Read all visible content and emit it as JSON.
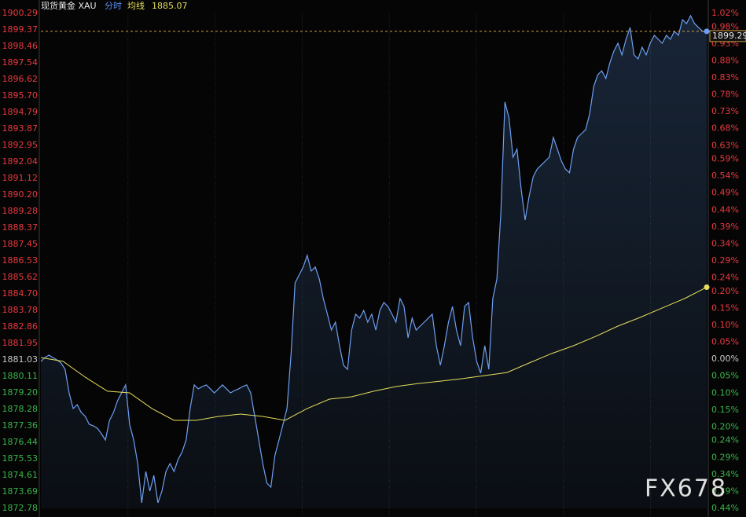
{
  "chart_data": {
    "type": "line",
    "title": "现货黄金 XAU",
    "series": [
      {
        "name": "分时",
        "color": "#6e9ff2",
        "values": [
          1880.95,
          1881.16,
          1881.3,
          1881.16,
          1881.03,
          1880.86,
          1880.51,
          1879.2,
          1878.33,
          1878.54,
          1878.11,
          1877.89,
          1877.45,
          1877.37,
          1877.23,
          1876.93,
          1876.58,
          1877.67,
          1878.11,
          1878.76,
          1879.2,
          1879.64,
          1877.45,
          1876.58,
          1875.27,
          1873.09,
          1874.83,
          1873.74,
          1874.61,
          1873.09,
          1873.74,
          1874.83,
          1875.27,
          1874.83,
          1875.49,
          1875.92,
          1876.58,
          1878.33,
          1879.64,
          1879.42,
          1879.55,
          1879.64,
          1879.42,
          1879.2,
          1879.42,
          1879.64,
          1879.42,
          1879.2,
          1879.33,
          1879.42,
          1879.55,
          1879.64,
          1879.2,
          1877.89,
          1876.58,
          1875.27,
          1874.18,
          1873.96,
          1875.71,
          1876.58,
          1877.45,
          1878.33,
          1881.38,
          1885.31,
          1885.75,
          1886.19,
          1886.84,
          1885.97,
          1886.19,
          1885.53,
          1884.44,
          1883.57,
          1882.69,
          1883.13,
          1881.82,
          1880.73,
          1880.51,
          1882.69,
          1883.57,
          1883.35,
          1883.78,
          1883.13,
          1883.57,
          1882.69,
          1883.78,
          1884.22,
          1884.0,
          1883.57,
          1883.13,
          1884.44,
          1884.0,
          1882.26,
          1883.35,
          1882.69,
          1882.91,
          1883.13,
          1883.35,
          1883.57,
          1881.82,
          1880.73,
          1881.82,
          1883.13,
          1884.0,
          1882.69,
          1881.82,
          1884.0,
          1884.22,
          1882.26,
          1880.95,
          1880.29,
          1881.82,
          1880.51,
          1884.44,
          1885.53,
          1889.24,
          1895.36,
          1894.48,
          1892.3,
          1892.74,
          1890.55,
          1888.81,
          1890.12,
          1891.21,
          1891.64,
          1891.86,
          1892.08,
          1892.3,
          1893.39,
          1892.74,
          1892.08,
          1891.64,
          1891.43,
          1892.74,
          1893.39,
          1893.61,
          1893.83,
          1894.7,
          1896.23,
          1896.88,
          1897.1,
          1896.67,
          1897.54,
          1898.19,
          1898.63,
          1897.98,
          1898.85,
          1899.5,
          1897.98,
          1897.76,
          1898.41,
          1897.98,
          1898.63,
          1899.07,
          1898.85,
          1898.63,
          1899.07,
          1898.85,
          1899.29,
          1899.07,
          1899.94,
          1899.72,
          1900.16,
          1899.72,
          1899.5,
          1899.29,
          1899.29
        ]
      },
      {
        "name": "均线",
        "color": "#e6de5c",
        "values": [
          1881.16,
          1880.95,
          1880.07,
          1879.29,
          1879.2,
          1878.33,
          1877.67,
          1877.67,
          1877.89,
          1878.02,
          1877.89,
          1877.67,
          1878.33,
          1878.85,
          1878.98,
          1879.29,
          1879.55,
          1879.72,
          1879.85,
          1879.99,
          1880.16,
          1880.33,
          1880.86,
          1881.38,
          1881.82,
          1882.34,
          1882.91,
          1883.39,
          1883.92,
          1884.44,
          1885.07
        ]
      }
    ],
    "ylim": [
      1872.78,
      1900.29
    ],
    "yticks": [
      1900.29,
      1899.37,
      1898.46,
      1897.54,
      1896.62,
      {
        "value": 1895.7,
        "label": "1895.70"
      },
      1894.79,
      1893.87,
      1892.95,
      1892.04,
      1891.12,
      {
        "value": 1890.2,
        "label": "1890.20"
      },
      1889.28,
      1888.37,
      1887.45,
      1886.53,
      1885.62,
      {
        "value": 1884.7,
        "label": "1884.70"
      },
      1883.78,
      1882.86,
      1881.95,
      1881.03,
      1880.11,
      {
        "value": 1879.2,
        "label": "1879.20"
      },
      1878.28,
      1877.36,
      1876.44,
      1875.53,
      1874.61,
      1873.69,
      1872.78
    ],
    "y2lim": [
      -0.44,
      1.02
    ],
    "y2ticks": [
      {
        "value": 1.02,
        "label": "1.02%"
      },
      {
        "value": 0.98,
        "label": "0.98%"
      },
      {
        "value": 0.93,
        "label": "0.93%"
      },
      {
        "value": 0.88,
        "label": "0.88%"
      },
      {
        "value": 0.83,
        "label": "0.83%"
      },
      {
        "value": 0.78,
        "label": "0.78%"
      },
      {
        "value": 0.73,
        "label": "0.73%"
      },
      {
        "value": 0.68,
        "label": "0.68%"
      },
      {
        "value": 0.63,
        "label": "0.63%"
      },
      {
        "value": 0.59,
        "label": "0.59%"
      },
      {
        "value": 0.54,
        "label": "0.54%"
      },
      {
        "value": 0.49,
        "label": "0.49%"
      },
      {
        "value": 0.44,
        "label": "0.44%"
      },
      {
        "value": 0.39,
        "label": "0.39%"
      },
      {
        "value": 0.34,
        "label": "0.34%"
      },
      {
        "value": 0.29,
        "label": "0.29%"
      },
      {
        "value": 0.24,
        "label": "0.24%"
      },
      {
        "value": 0.2,
        "label": "0.20%"
      },
      {
        "value": 0.15,
        "label": "0.15%"
      },
      {
        "value": 0.1,
        "label": "0.10%"
      },
      {
        "value": 0.05,
        "label": "0.05%"
      },
      {
        "value": 0,
        "label": "0.00%"
      },
      {
        "value": -0.05,
        "label": "0.05%"
      },
      {
        "value": -0.1,
        "label": "0.10%"
      },
      {
        "value": -0.15,
        "label": "0.15%"
      },
      {
        "value": -0.2,
        "label": "0.20%"
      },
      {
        "value": -0.24,
        "label": "0.24%"
      },
      {
        "value": -0.29,
        "label": "0.29%"
      },
      {
        "value": -0.34,
        "label": "0.34%"
      },
      {
        "value": -0.39,
        "label": "0.39%"
      },
      {
        "value": -0.44,
        "label": "0.44%"
      }
    ],
    "up_color": "#e8393e",
    "down_color": "#3ab34a",
    "flat_color": "#c8c8c8",
    "grid": false,
    "watermark": "FX678"
  }
}
